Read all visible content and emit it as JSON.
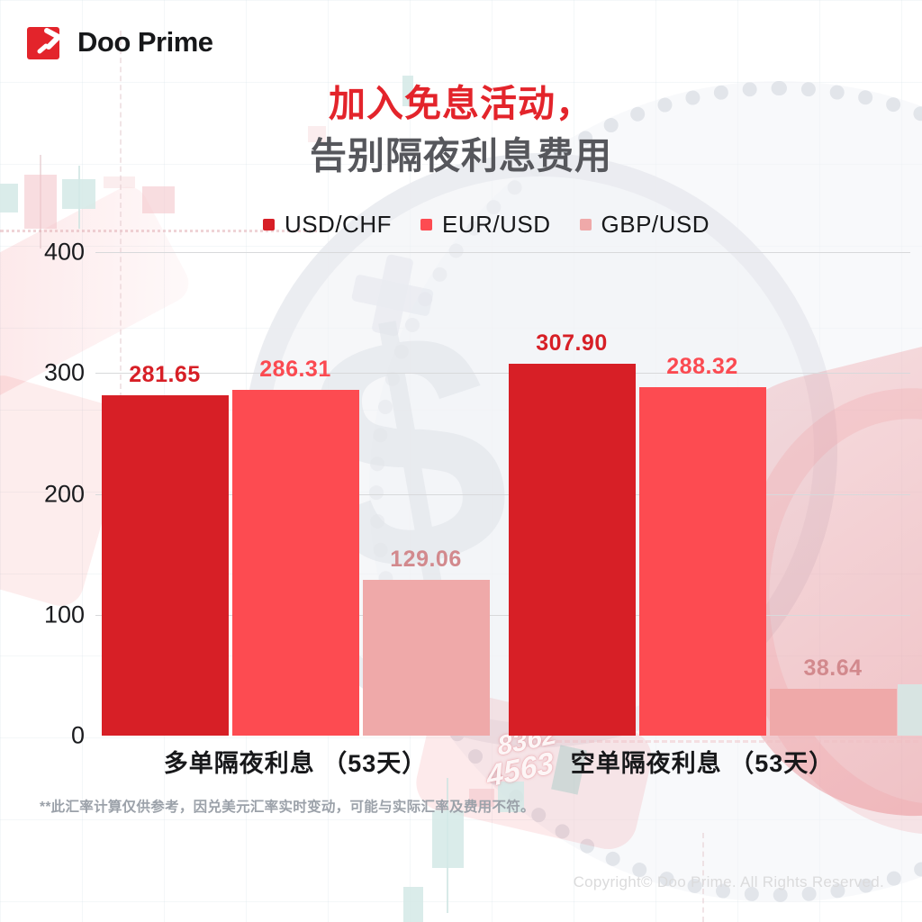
{
  "brand": {
    "name": "Doo Prime"
  },
  "title": {
    "line1": "加入免息活动，",
    "line2": "告别隔夜利息费用"
  },
  "chart_data": {
    "type": "bar",
    "categories": [
      "多单隔夜利息 （53天）",
      "空单隔夜利息 （53天）"
    ],
    "series": [
      {
        "name": "USD/CHF",
        "color": "#d71f26",
        "label_color": "#d71f26",
        "values": [
          281.65,
          307.9
        ]
      },
      {
        "name": "EUR/USD",
        "color": "#fd4b51",
        "label_color": "#fb4a51",
        "values": [
          286.31,
          288.32
        ]
      },
      {
        "name": "GBP/USD",
        "color": "#efa9a9",
        "label_color": "#d2898d",
        "values": [
          129.06,
          38.64
        ]
      }
    ],
    "title": "加入免息活动，告别隔夜利息费用",
    "xlabel": "",
    "ylabel": "",
    "ylim": [
      0,
      400
    ],
    "yticks": [
      0,
      100,
      200,
      300,
      400
    ],
    "grid": true,
    "legend_position": "top"
  },
  "footnote": "**此汇率计算仅供参考，因兑美元汇率实时变动，可能与实际汇率及费用不符。",
  "copyright": "Copyright© Doo Prime. All Rights Reserved.",
  "background": {
    "dollar_symbol": "$",
    "ticker_numbers": [
      "8362",
      "4563"
    ]
  }
}
